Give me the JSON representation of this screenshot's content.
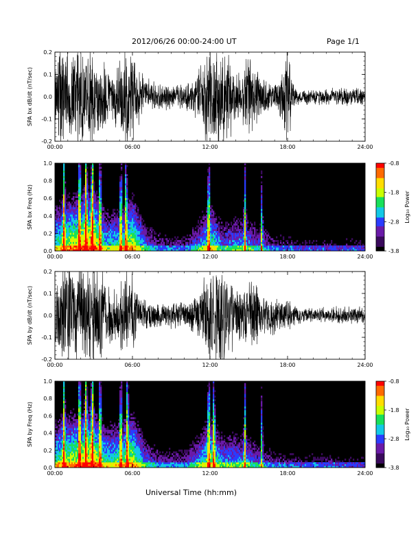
{
  "header": {
    "title": "2012/06/26  00:00-24:00 UT",
    "page": "Page 1/1"
  },
  "x_axis": {
    "ticks": [
      "00:00",
      "06:00",
      "12:00",
      "18:00",
      "24:00"
    ],
    "title": "Universal Time (hh:mm)"
  },
  "colorbar": {
    "ticks": [
      "-0.8",
      "-1.8",
      "-2.8",
      "-3.8"
    ],
    "label": "Log₁₀ Power",
    "range": [
      -3.8,
      -0.8
    ]
  },
  "colors": {
    "ink": "#000000",
    "spectrogram_bg": "#000000",
    "colormap": [
      "#000000",
      "#3a0a5c",
      "#6a1aa8",
      "#2a3cff",
      "#12c8e6",
      "#18e05a",
      "#c9ff00",
      "#ffdd00",
      "#ff6a00",
      "#ff0000"
    ]
  },
  "chart_data": [
    {
      "type": "line",
      "ylabel": "SPA bx dB/dt (nT/sec)",
      "xlim": [
        0,
        24
      ],
      "ylim": [
        -0.2,
        0.2
      ],
      "yticks": [
        "0.2",
        "0.1",
        "0.0",
        "-0.1",
        "-0.2"
      ],
      "grid": false,
      "amplitude_envelope": {
        "x_hours": [
          0,
          0.5,
          1,
          1.5,
          2,
          2.5,
          3,
          3.5,
          4,
          4.5,
          5,
          5.5,
          6,
          6.5,
          7,
          8,
          9,
          10,
          11,
          11.5,
          12,
          12.5,
          13,
          13.5,
          14,
          14.5,
          15,
          15.5,
          16,
          17,
          17.5,
          18,
          18.5,
          19,
          20,
          21,
          22,
          23,
          24
        ],
        "amplitude": [
          0.2,
          0.2,
          0.2,
          0.2,
          0.2,
          0.2,
          0.2,
          0.16,
          0.12,
          0.1,
          0.16,
          0.2,
          0.16,
          0.1,
          0.07,
          0.06,
          0.05,
          0.05,
          0.08,
          0.16,
          0.2,
          0.2,
          0.2,
          0.16,
          0.1,
          0.1,
          0.18,
          0.12,
          0.08,
          0.06,
          0.08,
          0.2,
          0.04,
          0.03,
          0.03,
          0.03,
          0.035,
          0.035,
          0.03
        ]
      }
    },
    {
      "type": "heatmap",
      "ylabel": "SPA bx Freq (Hz)",
      "xlim": [
        0,
        24
      ],
      "ylim": [
        0,
        1.0
      ],
      "yticks": [
        "1.0",
        "0.8",
        "0.6",
        "0.4",
        "0.2",
        "0.0"
      ],
      "zlim": [
        -3.8,
        -0.8
      ],
      "bright_columns_hours": [
        0.7,
        1.9,
        2.4,
        2.9,
        3.5,
        5.1,
        5.5,
        11.9,
        14.7,
        16.0
      ],
      "low_frequency_activity_hours": [
        0,
        1,
        2,
        3,
        4,
        5,
        6,
        7,
        8,
        9,
        10,
        11,
        12,
        13,
        14,
        15,
        16,
        17,
        18,
        19,
        20,
        21,
        22,
        23,
        24
      ],
      "low_frequency_power": [
        -2.0,
        -1.6,
        -1.4,
        -1.2,
        -2.2,
        -2.0,
        -1.5,
        -2.6,
        -3.0,
        -3.1,
        -3.1,
        -2.6,
        -1.8,
        -2.6,
        -2.4,
        -2.5,
        -2.8,
        -3.1,
        -3.2,
        -3.3,
        -3.3,
        -3.3,
        -3.3,
        -3.3,
        -3.3
      ]
    },
    {
      "type": "line",
      "ylabel": "SPA by dB/dt (nT/sec)",
      "xlim": [
        0,
        24
      ],
      "ylim": [
        -0.2,
        0.2
      ],
      "yticks": [
        "0.2",
        "0.1",
        "0.0",
        "-0.1",
        "-0.2"
      ],
      "grid": false,
      "amplitude_envelope": {
        "x_hours": [
          0,
          0.5,
          1,
          1.5,
          2,
          2.5,
          3,
          3.5,
          4,
          4.5,
          5,
          5.5,
          6,
          6.5,
          7,
          8,
          9,
          10,
          11,
          11.5,
          12,
          12.5,
          13,
          13.5,
          14,
          14.5,
          15,
          15.5,
          16,
          17,
          17.5,
          18,
          18.5,
          19,
          20,
          21,
          22,
          23,
          24
        ],
        "amplitude": [
          0.14,
          0.18,
          0.2,
          0.2,
          0.2,
          0.2,
          0.2,
          0.2,
          0.14,
          0.1,
          0.14,
          0.2,
          0.16,
          0.08,
          0.06,
          0.05,
          0.05,
          0.05,
          0.08,
          0.16,
          0.2,
          0.2,
          0.2,
          0.18,
          0.12,
          0.12,
          0.15,
          0.12,
          0.08,
          0.07,
          0.06,
          0.07,
          0.04,
          0.03,
          0.03,
          0.03,
          0.035,
          0.035,
          0.03
        ]
      }
    },
    {
      "type": "heatmap",
      "ylabel": "SPA by Freq (Hz)",
      "xlim": [
        0,
        24
      ],
      "ylim": [
        0,
        1.0
      ],
      "yticks": [
        "1.0",
        "0.8",
        "0.6",
        "0.4",
        "0.2",
        "0.0"
      ],
      "zlim": [
        -3.8,
        -0.8
      ],
      "bright_columns_hours": [
        0.7,
        1.9,
        2.4,
        2.9,
        3.5,
        5.1,
        5.6,
        11.9,
        12.3,
        14.7,
        16.0
      ],
      "low_frequency_activity_hours": [
        0,
        1,
        2,
        3,
        4,
        5,
        6,
        7,
        8,
        9,
        10,
        11,
        12,
        13,
        14,
        15,
        16,
        17,
        18,
        19,
        20,
        21,
        22,
        23,
        24
      ],
      "low_frequency_power": [
        -1.9,
        -1.6,
        -1.4,
        -1.3,
        -2.0,
        -1.9,
        -1.5,
        -2.5,
        -3.0,
        -3.0,
        -3.0,
        -2.5,
        -1.7,
        -2.4,
        -2.4,
        -2.5,
        -2.8,
        -3.1,
        -3.2,
        -3.2,
        -3.2,
        -3.2,
        -3.3,
        -3.3,
        -3.3
      ]
    }
  ]
}
